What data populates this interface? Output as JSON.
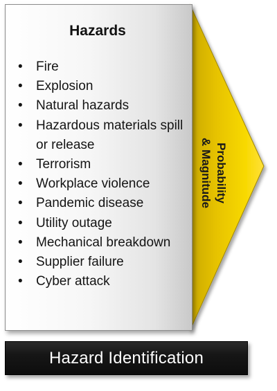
{
  "hazards_panel": {
    "title": "Hazards",
    "bullet": "•",
    "items": [
      "Fire",
      "Explosion",
      "Natural hazards",
      "Hazardous materials spill or release",
      "Terrorism",
      "Workplace violence",
      "Pandemic disease",
      "Utility outage",
      "Mechanical breakdown",
      "Supplier failure",
      "Cyber attack"
    ]
  },
  "arrow": {
    "label_line1": "Probability",
    "label_line2": "& Magnitude",
    "color": "#f5d000"
  },
  "footer": {
    "label": "Hazard Identification"
  }
}
